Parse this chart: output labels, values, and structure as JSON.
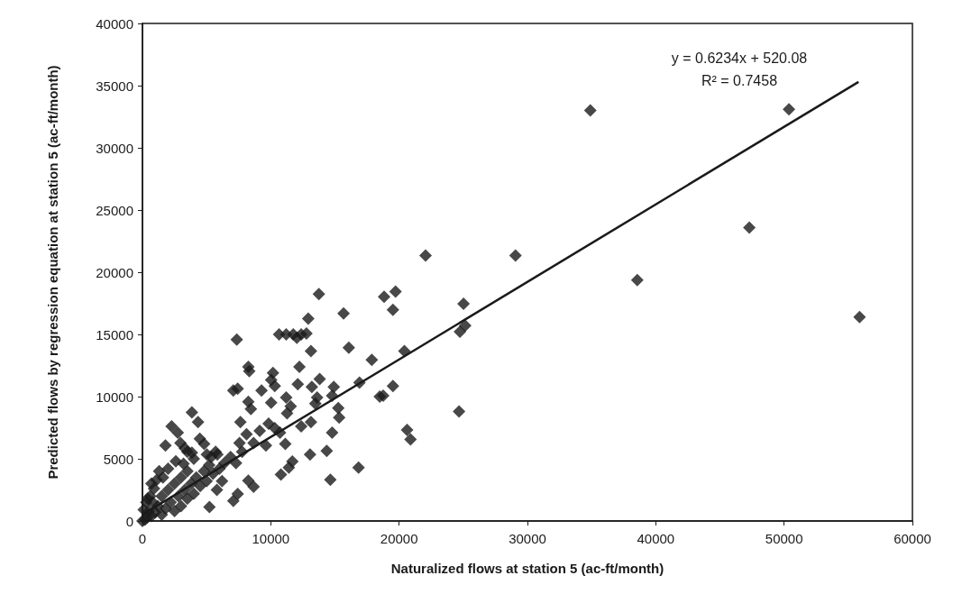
{
  "chart_data": {
    "type": "scatter",
    "xlabel": "Naturalized flows at station 5 (ac-ft/month)",
    "ylabel": "Predicted flows by regression equation at station 5 (ac-ft/month)",
    "xlim": [
      0,
      60000
    ],
    "xticks": [
      0,
      10000,
      20000,
      30000,
      40000,
      50000,
      60000
    ],
    "ylim": [
      0,
      40000
    ],
    "yticks": [
      0,
      5000,
      10000,
      15000,
      20000,
      25000,
      30000,
      35000,
      40000
    ],
    "grid": false,
    "marker": "diamond",
    "annotations": [
      "y = 0.6234x + 520.08",
      "R² = 0.7458"
    ],
    "series": [
      {
        "color": "#1a1a1a",
        "x": [
          34900,
          50380,
          47290,
          55880,
          38560,
          22060,
          29070,
          19720,
          18830,
          19520,
          25020,
          25150,
          24740,
          20410,
          19520,
          18760,
          24670,
          20620,
          20890,
          13750,
          15670,
          12920,
          10650,
          11200,
          11750,
          12370,
          12780,
          12030,
          7350,
          13130,
          16080,
          17870,
          8250,
          8320,
          10170,
          10030,
          10310,
          12230,
          13810,
          12100,
          13200,
          7080,
          7420,
          9280,
          14910,
          14780,
          16910,
          18490,
          10030,
          11200,
          11550,
          13610,
          13470,
          15260,
          15330,
          8250,
          8450,
          3850,
          4330,
          11270,
          13130,
          12370,
          14780,
          11130,
          13060,
          14360,
          16840,
          14640,
          10790,
          11410,
          11680,
          2270,
          2750,
          1790,
          4470,
          3300,
          3850,
          4810,
          5360,
          5220,
          7080,
          7420,
          8660,
          8250,
          7630,
          8110,
          9140,
          9830,
          10310,
          10720,
          8660,
          7560,
          9620,
          6870,
          7290,
          7770,
          6390,
          5840,
          2960,
          3500,
          5020,
          5700,
          0,
          200,
          400,
          500,
          700,
          800,
          1000,
          1200,
          1500,
          1500,
          1800,
          2000,
          2200,
          2500,
          2500,
          2800,
          3000,
          3000,
          3300,
          3500,
          3500,
          3800,
          4000,
          4200,
          4500,
          4800,
          5000,
          5200,
          5500,
          5800,
          6000,
          6200,
          300,
          600,
          900,
          1100,
          700,
          1300,
          1600,
          100,
          400,
          2000,
          2600,
          3200,
          4000
        ],
        "values": [
          33000,
          33100,
          23590,
          16400,
          19370,
          21340,
          21340,
          18450,
          18030,
          16970,
          17460,
          15700,
          15210,
          13660,
          10850,
          10070,
          8800,
          7320,
          6550,
          18240,
          16690,
          16270,
          15000,
          15000,
          15000,
          15000,
          15070,
          14720,
          14580,
          13660,
          13940,
          12960,
          12390,
          12040,
          11900,
          11340,
          10850,
          12390,
          11410,
          10990,
          10770,
          10490,
          10630,
          10490,
          10770,
          10070,
          11130,
          10000,
          9510,
          9930,
          9230,
          9930,
          9440,
          9080,
          8310,
          9580,
          9010,
          8730,
          7960,
          8660,
          7960,
          7610,
          7110,
          6200,
          5350,
          5630,
          4300,
          3310,
          3730,
          4300,
          4790,
          7610,
          7110,
          6060,
          6620,
          5850,
          5490,
          6200,
          5140,
          1130,
          1620,
          2180,
          2750,
          3240,
          7960,
          6970,
          7250,
          7820,
          7460,
          7110,
          6270,
          6270,
          6060,
          5140,
          4650,
          5560,
          4650,
          5350,
          6270,
          5560,
          5350,
          5560,
          0,
          100,
          300,
          800,
          400,
          1500,
          700,
          1200,
          2000,
          500,
          1000,
          2500,
          1500,
          3000,
          800,
          2000,
          3500,
          1200,
          2500,
          4000,
          1800,
          3000,
          2200,
          3500,
          2800,
          4000,
          3200,
          4500,
          3800,
          2500,
          4200,
          3200,
          1500,
          2000,
          2600,
          3300,
          3000,
          4000,
          3500,
          900,
          1800,
          4200,
          4800,
          4600,
          5000
        ]
      },
      {
        "type": "line",
        "color": "#1a1a1a",
        "line_style": "solid",
        "marker": "none",
        "x": [
          0,
          55800
        ],
        "values": [
          520,
          35300
        ]
      }
    ]
  }
}
